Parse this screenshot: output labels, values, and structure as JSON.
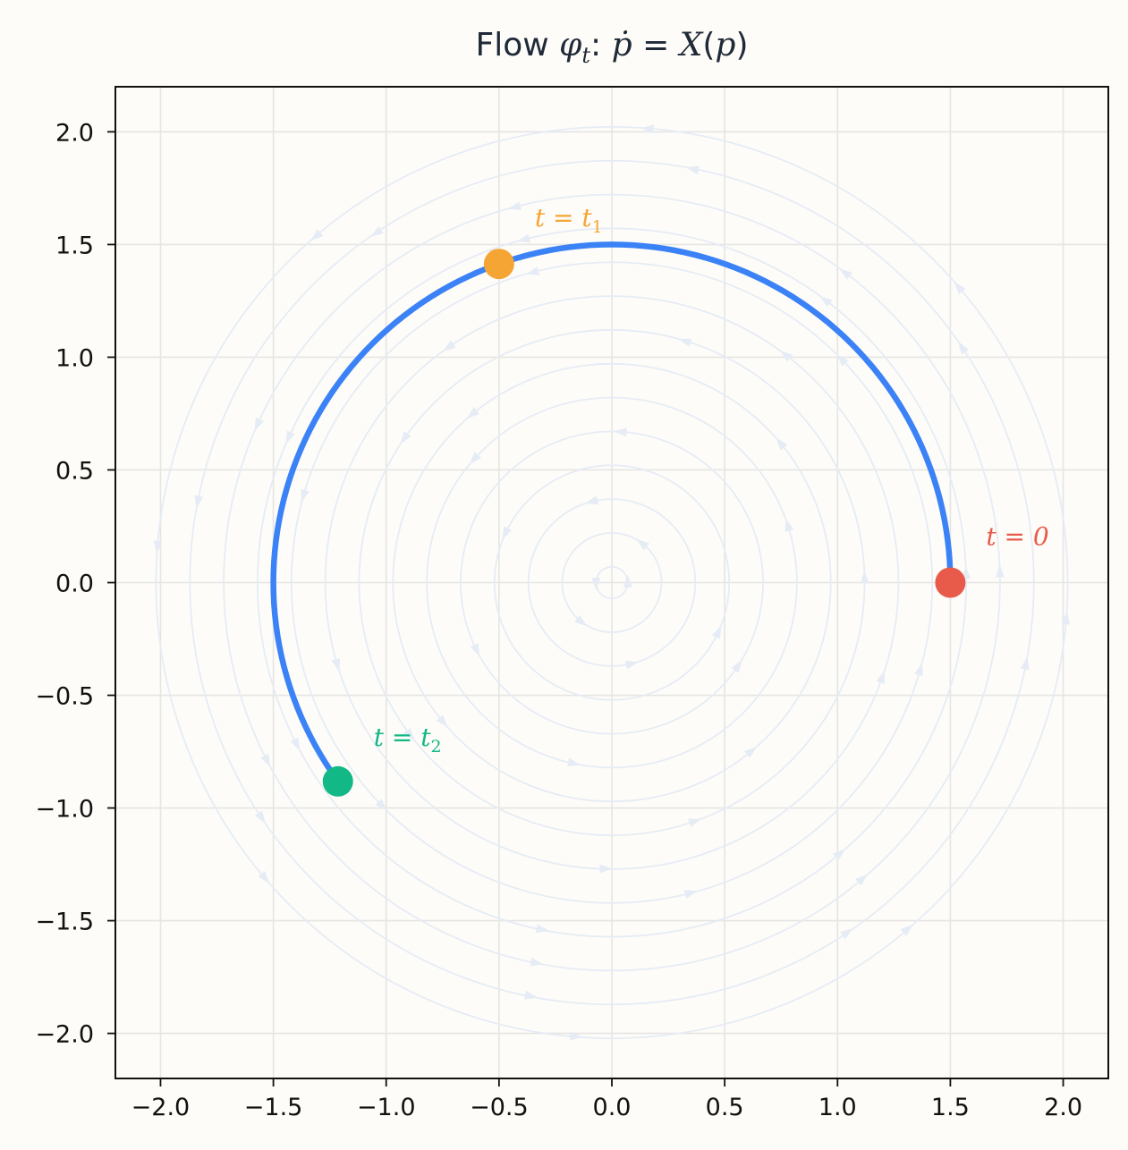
{
  "chart_data": {
    "type": "line",
    "title": "Flow φt: ṗ = X(p)",
    "xlabel": "",
    "ylabel": "",
    "xlim": [
      -2.2,
      2.2
    ],
    "ylim": [
      -2.2,
      2.2
    ],
    "x_ticks": [
      -2.0,
      -1.5,
      -1.0,
      -0.5,
      0.0,
      0.5,
      1.0,
      1.5,
      2.0
    ],
    "y_ticks": [
      -2.0,
      -1.5,
      -1.0,
      -0.5,
      0.0,
      0.5,
      1.0,
      1.5,
      2.0
    ],
    "x_tick_labels": [
      "−2.0",
      "−1.5",
      "−1.0",
      "−0.5",
      "0.0",
      "0.5",
      "1.0",
      "1.5",
      "2.0"
    ],
    "y_tick_labels": [
      "−2.0",
      "−1.5",
      "−1.0",
      "−0.5",
      "0.0",
      "0.5",
      "1.0",
      "1.5",
      "2.0"
    ],
    "grid": true,
    "background_field": "counterclockwise rotation streamlines around the origin",
    "trajectory": {
      "shape": "circular arc, radius 1.5, counterclockwise",
      "color": "#3b82f6",
      "start_angle_deg": 0,
      "end_angle_deg": 216
    },
    "points": [
      {
        "label": "t = 0",
        "x": 1.5,
        "y": 0.0,
        "color": "#e85a4a"
      },
      {
        "label": "t = t1",
        "x": -0.5,
        "y": 1.414,
        "color": "#f5a533"
      },
      {
        "label": "t = t2",
        "x": -1.214,
        "y": -0.882,
        "color": "#12b886"
      }
    ],
    "streamline_color": "#e6ecf5"
  }
}
